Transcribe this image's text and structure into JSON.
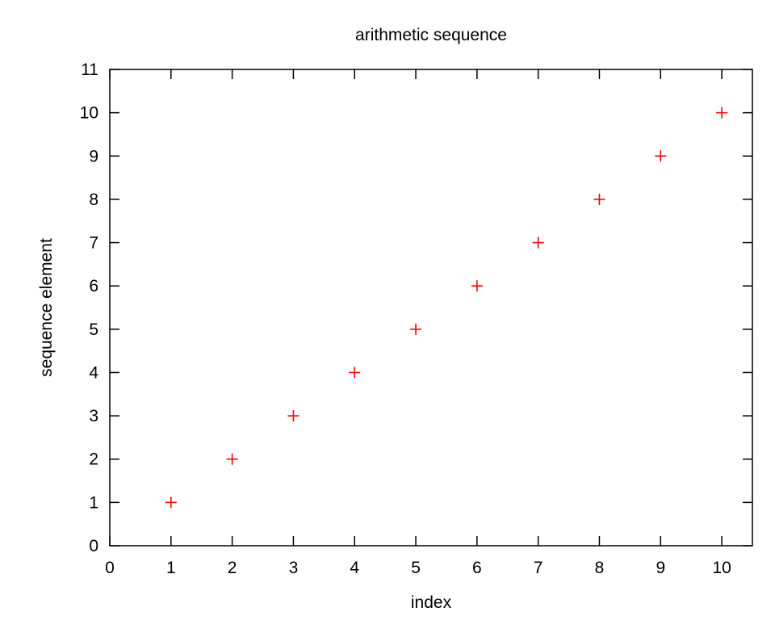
{
  "chart_data": {
    "type": "scatter",
    "title": "arithmetic sequence",
    "xlabel": "index",
    "ylabel": "sequence element",
    "xlim": [
      0,
      10.5
    ],
    "ylim": [
      0,
      11
    ],
    "x_ticks": [
      0,
      1,
      2,
      3,
      4,
      5,
      6,
      7,
      8,
      9,
      10
    ],
    "y_ticks": [
      0,
      1,
      2,
      3,
      4,
      5,
      6,
      7,
      8,
      9,
      10,
      11
    ],
    "grid": false,
    "legend": "none",
    "marker": "plus",
    "series": [
      {
        "color": "#ff0000",
        "x": [
          1,
          2,
          3,
          4,
          5,
          6,
          7,
          8,
          9,
          10
        ],
        "y": [
          1,
          2,
          3,
          4,
          5,
          6,
          7,
          8,
          9,
          10
        ]
      }
    ]
  }
}
